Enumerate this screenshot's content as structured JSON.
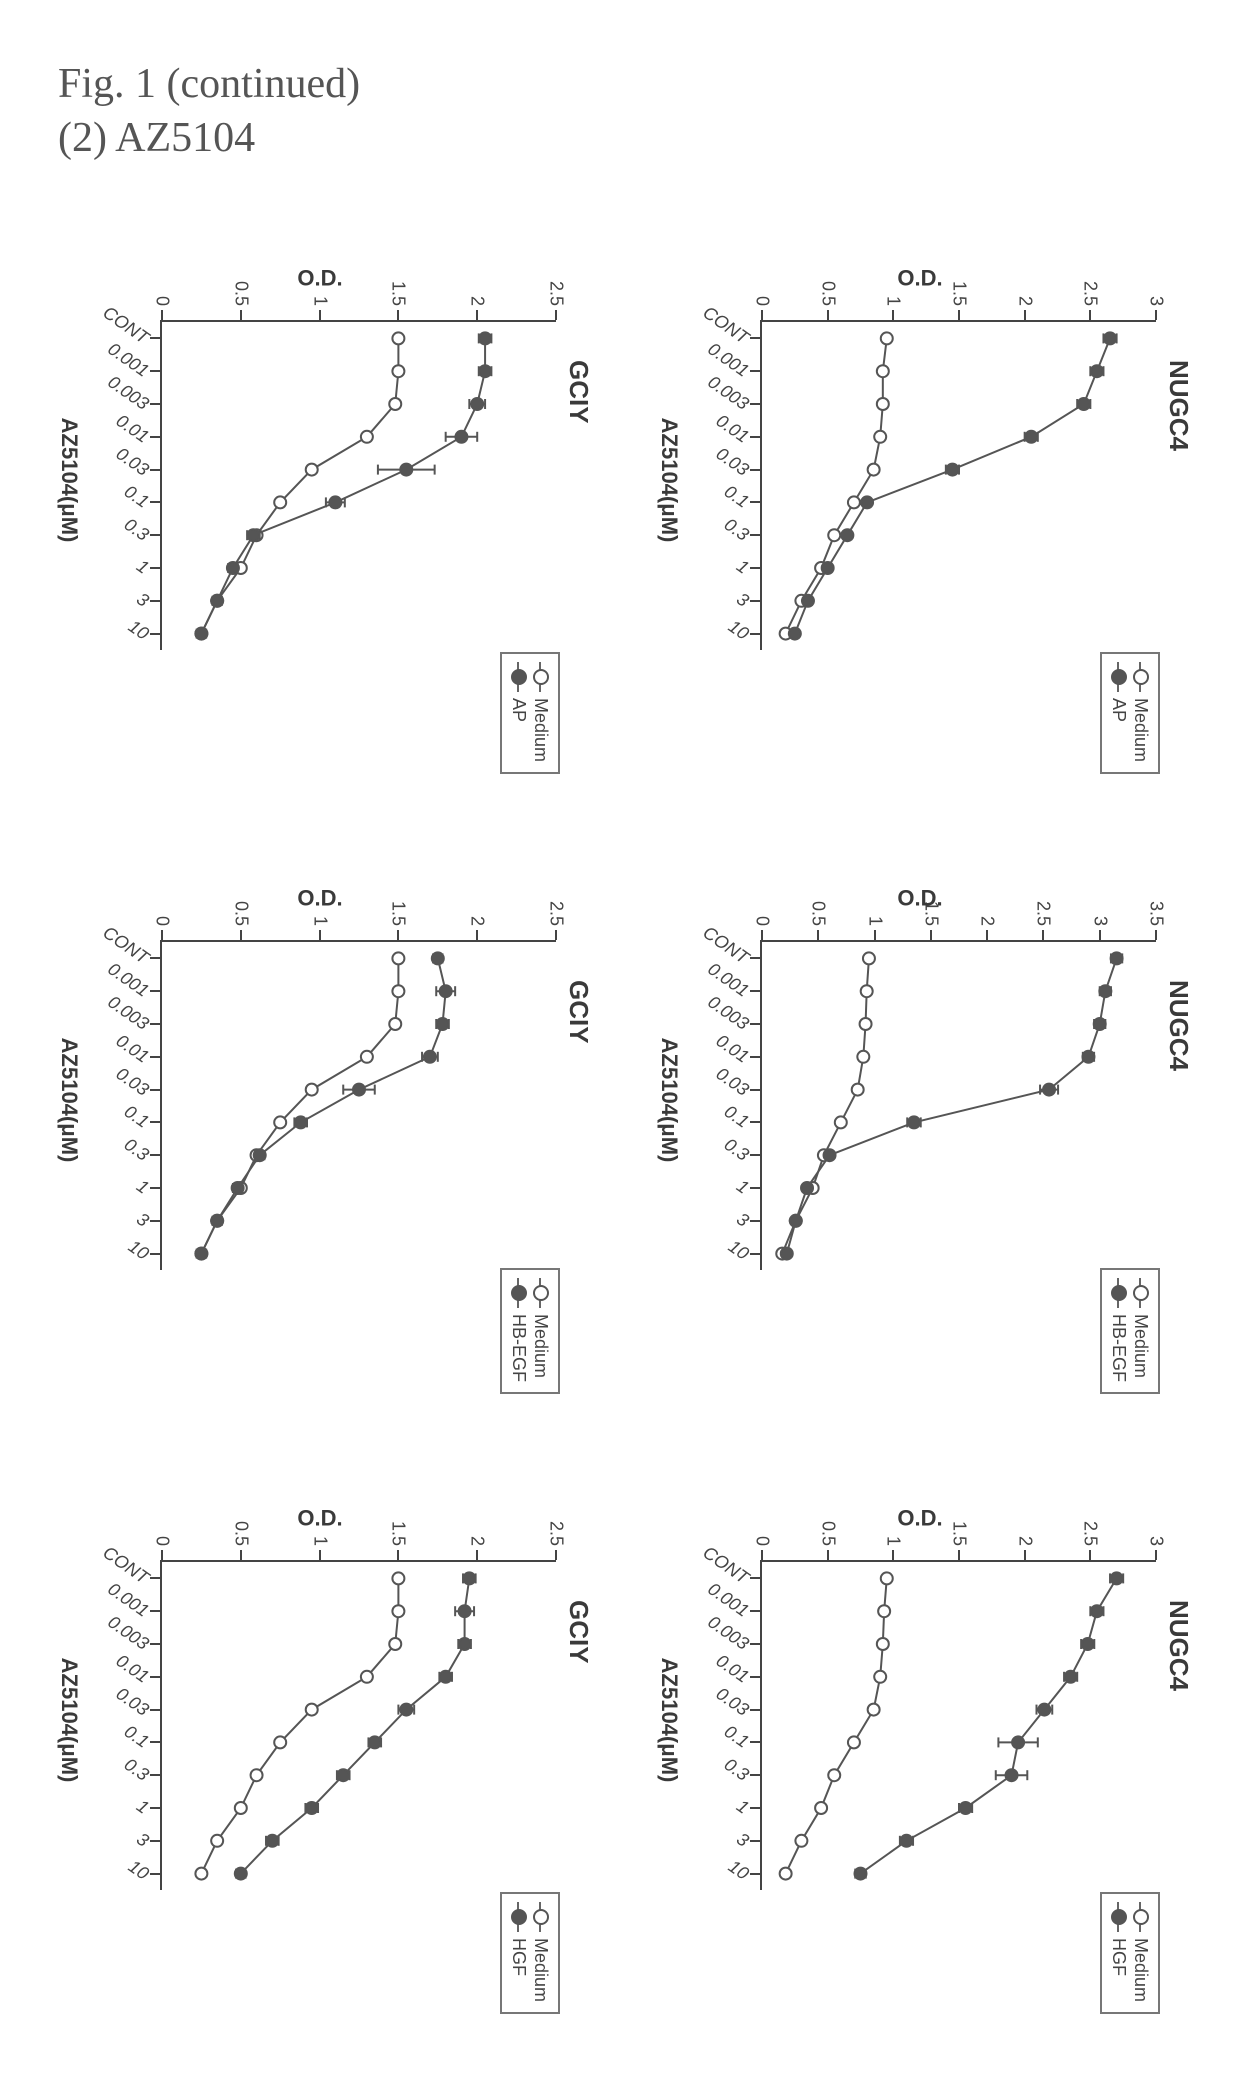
{
  "figure_label": "Fig. 1 (continued)",
  "sub_label": "(2) AZ5104",
  "text_color": "#444444",
  "axis_color": "#444444",
  "legend_border_color": "#777777",
  "x_axis_label": "AZ5104(μM)",
  "y_axis_label": "O.D.",
  "x_categories": [
    "CONT",
    "0.001",
    "0.003",
    "0.01",
    "0.03",
    "0.1",
    "0.3",
    "1",
    "3",
    "10"
  ],
  "panels": [
    {
      "id": "nugc4-ap",
      "title": "NUGC4",
      "legend": [
        "Medium",
        "AP"
      ],
      "ylim": [
        0,
        3
      ],
      "ytick_step": 0.5,
      "series": [
        {
          "name": "Medium",
          "marker": "open",
          "color": "#555555",
          "y": [
            0.95,
            0.92,
            0.92,
            0.9,
            0.85,
            0.7,
            0.55,
            0.45,
            0.3,
            0.18
          ],
          "err": [
            0,
            0,
            0,
            0,
            0,
            0,
            0,
            0,
            0,
            0
          ]
        },
        {
          "name": "AP",
          "marker": "filled",
          "color": "#555555",
          "y": [
            2.65,
            2.55,
            2.45,
            2.05,
            1.45,
            0.8,
            0.65,
            0.5,
            0.35,
            0.25
          ],
          "err": [
            0.05,
            0.05,
            0.05,
            0.05,
            0.05,
            0.03,
            0.03,
            0.03,
            0.03,
            0.03
          ]
        }
      ]
    },
    {
      "id": "nugc4-hbegf",
      "title": "NUGC4",
      "legend": [
        "Medium",
        "HB-EGF"
      ],
      "ylim": [
        0,
        3.5
      ],
      "ytick_step": 0.5,
      "series": [
        {
          "name": "Medium",
          "marker": "open",
          "color": "#555555",
          "y": [
            0.95,
            0.93,
            0.92,
            0.9,
            0.85,
            0.7,
            0.55,
            0.45,
            0.3,
            0.18
          ],
          "err": [
            0,
            0,
            0,
            0,
            0,
            0,
            0,
            0,
            0,
            0
          ]
        },
        {
          "name": "HB-EGF",
          "marker": "filled",
          "color": "#555555",
          "y": [
            3.15,
            3.05,
            3.0,
            2.9,
            2.55,
            1.35,
            0.6,
            0.4,
            0.3,
            0.22
          ],
          "err": [
            0.05,
            0.05,
            0.05,
            0.05,
            0.08,
            0.06,
            0.03,
            0.03,
            0.03,
            0.03
          ]
        }
      ]
    },
    {
      "id": "nugc4-hgf",
      "title": "NUGC4",
      "legend": [
        "Medium",
        "HGF"
      ],
      "ylim": [
        0,
        3
      ],
      "ytick_step": 0.5,
      "series": [
        {
          "name": "Medium",
          "marker": "open",
          "color": "#555555",
          "y": [
            0.95,
            0.93,
            0.92,
            0.9,
            0.85,
            0.7,
            0.55,
            0.45,
            0.3,
            0.18
          ],
          "err": [
            0,
            0,
            0,
            0,
            0,
            0,
            0,
            0,
            0,
            0
          ]
        },
        {
          "name": "HGF",
          "marker": "filled",
          "color": "#555555",
          "y": [
            2.7,
            2.55,
            2.48,
            2.35,
            2.15,
            1.95,
            1.9,
            1.55,
            1.1,
            0.75
          ],
          "err": [
            0.05,
            0.05,
            0.05,
            0.05,
            0.06,
            0.15,
            0.12,
            0.05,
            0.05,
            0.04
          ]
        }
      ]
    },
    {
      "id": "gciy-ap",
      "title": "GCIY",
      "legend": [
        "Medium",
        "AP"
      ],
      "ylim": [
        0,
        2.5
      ],
      "ytick_step": 0.5,
      "series": [
        {
          "name": "Medium",
          "marker": "open",
          "color": "#555555",
          "y": [
            1.5,
            1.5,
            1.48,
            1.3,
            0.95,
            0.75,
            0.6,
            0.5,
            0.35,
            0.25
          ],
          "err": [
            0,
            0,
            0,
            0,
            0,
            0,
            0,
            0,
            0,
            0
          ]
        },
        {
          "name": "AP",
          "marker": "filled",
          "color": "#555555",
          "y": [
            2.05,
            2.05,
            2.0,
            1.9,
            1.55,
            1.1,
            0.58,
            0.45,
            0.35,
            0.25
          ],
          "err": [
            0.04,
            0.04,
            0.05,
            0.1,
            0.18,
            0.06,
            0.04,
            0.03,
            0.03,
            0.03
          ]
        }
      ]
    },
    {
      "id": "gciy-hbegf",
      "title": "GCIY",
      "legend": [
        "Medium",
        "HB-EGF"
      ],
      "ylim": [
        0,
        2.5
      ],
      "ytick_step": 0.5,
      "series": [
        {
          "name": "Medium",
          "marker": "open",
          "color": "#555555",
          "y": [
            1.5,
            1.5,
            1.48,
            1.3,
            0.95,
            0.75,
            0.6,
            0.5,
            0.35,
            0.25
          ],
          "err": [
            0,
            0,
            0,
            0,
            0,
            0,
            0,
            0,
            0,
            0
          ]
        },
        {
          "name": "HB-EGF",
          "marker": "filled",
          "color": "#555555",
          "y": [
            1.75,
            1.8,
            1.78,
            1.7,
            1.25,
            0.88,
            0.62,
            0.48,
            0.35,
            0.25
          ],
          "err": [
            0.03,
            0.06,
            0.04,
            0.05,
            0.1,
            0.04,
            0.03,
            0.03,
            0.03,
            0.03
          ]
        }
      ]
    },
    {
      "id": "gciy-hgf",
      "title": "GCIY",
      "legend": [
        "Medium",
        "HGF"
      ],
      "ylim": [
        0,
        2.5
      ],
      "ytick_step": 0.5,
      "series": [
        {
          "name": "Medium",
          "marker": "open",
          "color": "#555555",
          "y": [
            1.5,
            1.5,
            1.48,
            1.3,
            0.95,
            0.75,
            0.6,
            0.5,
            0.35,
            0.25
          ],
          "err": [
            0,
            0,
            0,
            0,
            0,
            0,
            0,
            0,
            0,
            0
          ]
        },
        {
          "name": "HGF",
          "marker": "filled",
          "color": "#555555",
          "y": [
            1.95,
            1.92,
            1.92,
            1.8,
            1.55,
            1.35,
            1.15,
            0.95,
            0.7,
            0.5
          ],
          "err": [
            0.04,
            0.06,
            0.04,
            0.04,
            0.05,
            0.04,
            0.04,
            0.04,
            0.04,
            0.03
          ]
        }
      ]
    }
  ],
  "style": {
    "title_fontsize": 26,
    "label_fontsize": 22,
    "tick_fontsize": 18,
    "legend_fontsize": 18,
    "line_width": 2,
    "marker_radius": 6,
    "marker_stroke": 2,
    "background": "#ffffff"
  }
}
